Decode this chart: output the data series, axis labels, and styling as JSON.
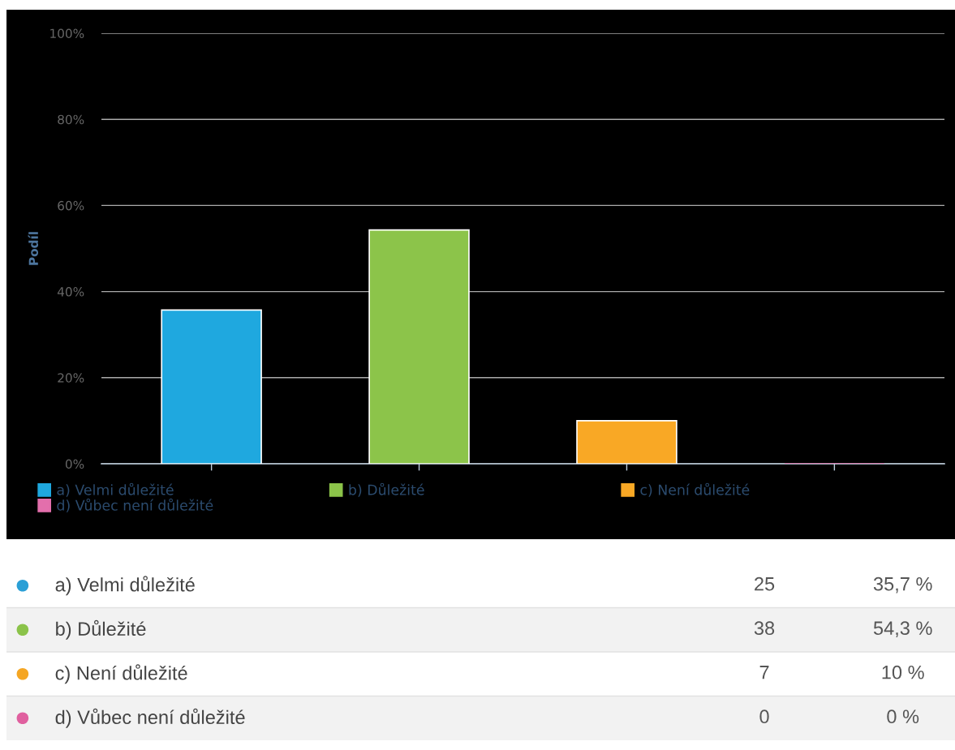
{
  "chart_data": [
    {
      "type": "bar",
      "ylabel": "Podíl",
      "categories": [
        null,
        null,
        null,
        null
      ],
      "series": [
        {
          "name": "a) Velmi důležité",
          "color": "#1fa8df",
          "values": [
            35.7,
            null,
            null,
            null
          ]
        },
        {
          "name": "b) Důležité",
          "color": "#8cc44a",
          "values": [
            null,
            54.3,
            null,
            null
          ]
        },
        {
          "name": "c) Není důležité",
          "color": "#f9a825",
          "values": [
            null,
            null,
            10,
            null
          ]
        },
        {
          "name": "d) Vůbec není důležité",
          "color": "#e36fac",
          "values": [
            null,
            null,
            null,
            0
          ]
        }
      ],
      "ylim": [
        0,
        100
      ],
      "yticks": [
        {
          "value": 0,
          "label": "0%"
        },
        {
          "value": 20,
          "label": "20%"
        },
        {
          "value": 40,
          "label": "40%"
        },
        {
          "value": 60,
          "label": "60%"
        },
        {
          "value": 80,
          "label": "80%"
        },
        {
          "value": 100,
          "label": "100%"
        }
      ],
      "grid": "y",
      "legend": "bottom"
    },
    {
      "type": "other",
      "categories": [
        "a) Velmi důležité",
        "b) Důležité",
        "c) Není důležité",
        "d) Vůbec není důležité"
      ],
      "colors": [
        "#2a9fd6",
        "#8bc34a",
        "#f5a623",
        "#e0609f"
      ],
      "data_labels": true,
      "series": [
        {
          "values": [
            25,
            38,
            7,
            0
          ]
        },
        {
          "values": [
            35.7,
            54.3,
            10,
            0
          ],
          "value_labels": [
            "35,7 %",
            "54,3 %",
            "10 %",
            "0 %"
          ]
        }
      ]
    }
  ]
}
